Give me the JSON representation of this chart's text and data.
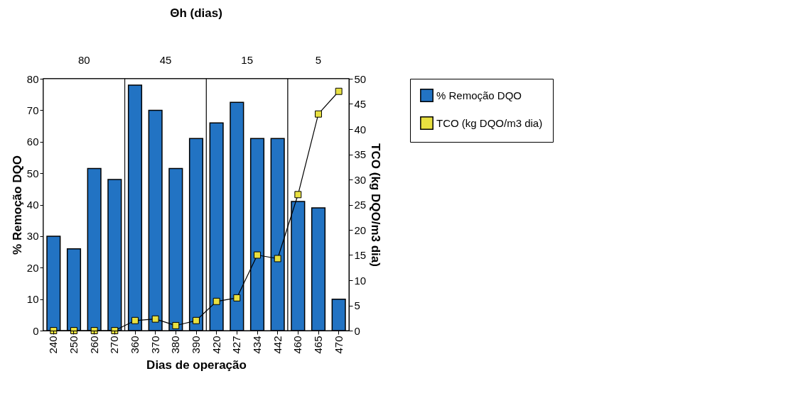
{
  "chart_data": {
    "type": "bar",
    "x2label": "Θh (dias)",
    "xlabel": "Dias de operação",
    "ylabel": "% Remoção DQO",
    "y2label": "TCO (kg DQO/m3 dia)",
    "categories": [
      "240",
      "250",
      "260",
      "270",
      "360",
      "370",
      "380",
      "390",
      "420",
      "427",
      "434",
      "442",
      "460",
      "465",
      "470"
    ],
    "series": [
      {
        "name": "% Remoção  DQO",
        "color": "#2273c3",
        "values": [
          30,
          26,
          51.5,
          48,
          78,
          70,
          51.5,
          61,
          66,
          72.5,
          61,
          61,
          41,
          39,
          10
        ]
      },
      {
        "name": "TCO (kg DQO/m3 dia)",
        "type": "line",
        "axis": "y2",
        "color": "#e8e040",
        "values": [
          0,
          0,
          0,
          0,
          2,
          2.3,
          1,
          2,
          5.8,
          6.5,
          15,
          14.3,
          27,
          43,
          47.5
        ]
      }
    ],
    "bands": [
      {
        "axis": "x",
        "from": "240",
        "to": "270",
        "label": "80",
        "color": "#ffffff"
      },
      {
        "axis": "x",
        "from": "360",
        "to": "390",
        "label": "45",
        "color": "#ffffff"
      },
      {
        "axis": "x",
        "from": "420",
        "to": "442",
        "label": "15",
        "color": "#ffffff"
      },
      {
        "axis": "x",
        "from": "460",
        "to": "470",
        "label": "5",
        "color": "#ffffff"
      }
    ],
    "ylim": [
      0,
      80
    ],
    "yticks": [
      0,
      10,
      20,
      30,
      40,
      50,
      60,
      70,
      80
    ],
    "y2lim": [
      0,
      50
    ],
    "y2ticks": [
      0,
      5,
      10,
      15,
      20,
      25,
      30,
      35,
      40,
      45,
      50
    ],
    "marker": "square",
    "grid": false,
    "legend": "right"
  }
}
